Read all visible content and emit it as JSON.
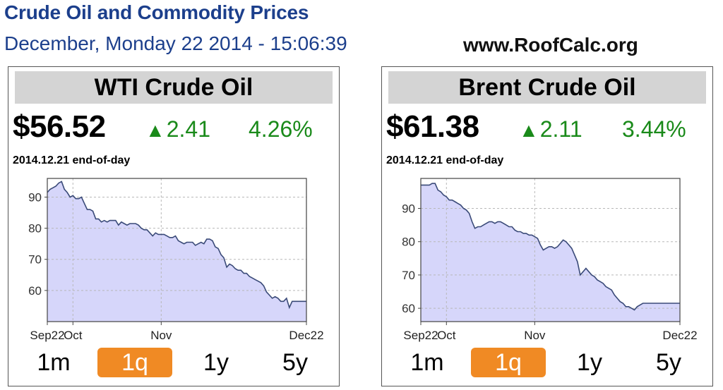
{
  "header": {
    "title": "Crude Oil and Commodity Prices",
    "date": "December, Monday 22 2014 - 15:06:39",
    "site": "www.RoofCalc.org"
  },
  "colors": {
    "header": "#1c3f8c",
    "up": "#1a8a1a",
    "active_range": "#f08a24",
    "area_fill": "#d6d6fa",
    "line": "#3a4a78"
  },
  "panels": [
    {
      "title": "WTI Crude Oil",
      "price": "$56.52",
      "change": "2.41",
      "change_arrow": "▲",
      "percent": "4.26%",
      "eod": "2014.12.21 end-of-day",
      "ranges": [
        "1m",
        "1q",
        "1y",
        "5y"
      ],
      "active_range": "1q"
    },
    {
      "title": "Brent Crude Oil",
      "price": "$61.38",
      "change": "2.11",
      "change_arrow": "▲",
      "percent": "3.44%",
      "eod": "2014.12.21 end-of-day",
      "ranges": [
        "1m",
        "1q",
        "1y",
        "5y"
      ],
      "active_range": "1q"
    }
  ],
  "chart_data": [
    {
      "type": "area",
      "title": "WTI Crude Oil",
      "xlabel": "",
      "ylabel": "",
      "x_ticks": [
        "Sep22",
        "Oct",
        "Nov",
        "Dec22"
      ],
      "x_tick_days": [
        0,
        9,
        40,
        91
      ],
      "x_range_days": [
        0,
        91
      ],
      "y_ticks": [
        60,
        70,
        80,
        90
      ],
      "ylim": [
        50,
        96
      ],
      "grid": true,
      "x_days": [
        0,
        1,
        2,
        3,
        4,
        5,
        6,
        7,
        8,
        9,
        10,
        11,
        12,
        13,
        14,
        15,
        16,
        17,
        18,
        19,
        20,
        21,
        22,
        23,
        24,
        25,
        26,
        27,
        28,
        29,
        30,
        31,
        32,
        33,
        34,
        35,
        36,
        37,
        38,
        39,
        40,
        41,
        42,
        43,
        44,
        45,
        46,
        47,
        48,
        49,
        50,
        51,
        52,
        53,
        54,
        55,
        56,
        57,
        58,
        59,
        60,
        61,
        62,
        63,
        64,
        65,
        66,
        67,
        68,
        69,
        70,
        71,
        72,
        73,
        74,
        75,
        76,
        77,
        78,
        79,
        80,
        81,
        82,
        83,
        84,
        85,
        86,
        87,
        88,
        89,
        90,
        91
      ],
      "values": [
        91.5,
        92.5,
        93,
        93.5,
        94.5,
        95,
        92.5,
        91.5,
        90,
        90.5,
        89.5,
        89.5,
        90,
        88,
        86,
        86,
        85.5,
        83,
        83,
        82,
        82.5,
        82,
        82.5,
        82.5,
        82.5,
        81,
        82,
        81.5,
        81,
        81.5,
        81.5,
        81.5,
        81,
        80,
        79.5,
        79.5,
        78.5,
        77.5,
        78.5,
        78,
        78,
        78,
        77.5,
        77,
        77,
        77.5,
        76,
        75.5,
        75,
        75.5,
        75.5,
        75.5,
        74.5,
        75,
        75.5,
        75,
        76.5,
        76.5,
        76,
        74,
        73.5,
        71.5,
        70.5,
        67.5,
        68.5,
        68,
        67,
        66.5,
        66.5,
        65.5,
        65.5,
        64.5,
        64,
        63.5,
        63,
        62.5,
        61.5,
        59.5,
        58.5,
        57.5,
        58,
        57.5,
        56.5,
        56.5,
        57.5,
        54.5,
        56.5,
        56.5,
        56.5,
        56.5,
        56.5,
        56.5
      ]
    },
    {
      "type": "area",
      "title": "Brent Crude Oil",
      "xlabel": "",
      "ylabel": "",
      "x_ticks": [
        "Sep22",
        "Oct",
        "Nov",
        "Dec22"
      ],
      "x_tick_days": [
        0,
        9,
        40,
        91
      ],
      "x_range_days": [
        0,
        91
      ],
      "y_ticks": [
        60,
        70,
        80,
        90
      ],
      "ylim": [
        56,
        99
      ],
      "grid": true,
      "x_days": [
        0,
        1,
        2,
        3,
        4,
        5,
        6,
        7,
        8,
        9,
        10,
        11,
        12,
        13,
        14,
        15,
        16,
        17,
        18,
        19,
        20,
        21,
        22,
        23,
        24,
        25,
        26,
        27,
        28,
        29,
        30,
        31,
        32,
        33,
        34,
        35,
        36,
        37,
        38,
        39,
        40,
        41,
        42,
        43,
        44,
        45,
        46,
        47,
        48,
        49,
        50,
        51,
        52,
        53,
        54,
        55,
        56,
        57,
        58,
        59,
        60,
        61,
        62,
        63,
        64,
        65,
        66,
        67,
        68,
        69,
        70,
        71,
        72,
        73,
        74,
        75,
        76,
        77,
        78,
        79,
        80,
        81,
        82,
        83,
        84,
        85,
        86,
        87,
        88,
        89,
        90,
        91
      ],
      "values": [
        97,
        97,
        97,
        97,
        97.5,
        97.5,
        95.5,
        95,
        94,
        93.5,
        92.5,
        92.5,
        92,
        91.5,
        91,
        90,
        89.5,
        88.5,
        86,
        84,
        84.5,
        84.5,
        85,
        85.5,
        86,
        86,
        85.5,
        86,
        86,
        85.5,
        85,
        84.5,
        84.5,
        83.5,
        83,
        83,
        82.5,
        82.5,
        82,
        82,
        81.5,
        81,
        79,
        77.5,
        78,
        78.5,
        78.5,
        78,
        78.5,
        79.5,
        80.5,
        80,
        79,
        78,
        76,
        74,
        70,
        71,
        72,
        71,
        70,
        69.5,
        68.5,
        68,
        67.5,
        66.5,
        66,
        65.5,
        64,
        63,
        62,
        61.5,
        60.5,
        60.5,
        60,
        59.5,
        60.5,
        61,
        61.5,
        61.5,
        61.5,
        61.5,
        61.5,
        61.5,
        61.5,
        61.5,
        61.5,
        61.5,
        61.5,
        61.5,
        61.5,
        61.5
      ]
    }
  ]
}
